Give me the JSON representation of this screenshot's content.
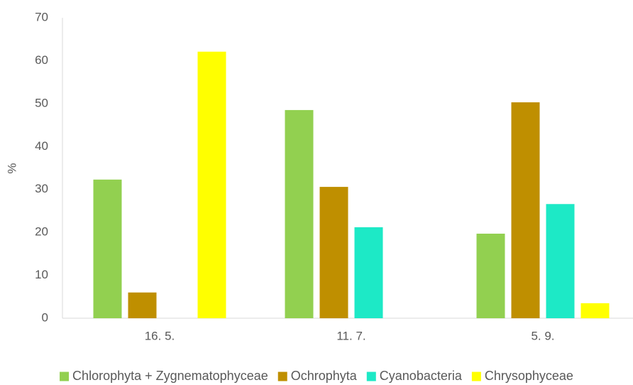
{
  "chart_data": {
    "type": "bar",
    "y_label": "%",
    "categories": [
      "16. 5.",
      "11. 7.",
      "5. 9."
    ],
    "series": [
      {
        "name": "Chlorophyta + Zygnematophyceae",
        "color": "#92d050",
        "values": [
          32.3,
          48.5,
          19.7
        ]
      },
      {
        "name": "Ochrophyta",
        "color": "#bf8f00",
        "values": [
          6.0,
          30.6,
          50.3
        ]
      },
      {
        "name": "Cyanobacteria",
        "color": "#1de9c6",
        "values": [
          0,
          21.2,
          26.6
        ]
      },
      {
        "name": "Chrysophyceae",
        "color": "#ffff00",
        "values": [
          62.1,
          0,
          3.5
        ]
      }
    ],
    "ylim": [
      0,
      70
    ],
    "yticks": [
      0,
      10,
      20,
      30,
      40,
      50,
      60,
      70
    ],
    "grid": false,
    "legend": "bottom"
  }
}
